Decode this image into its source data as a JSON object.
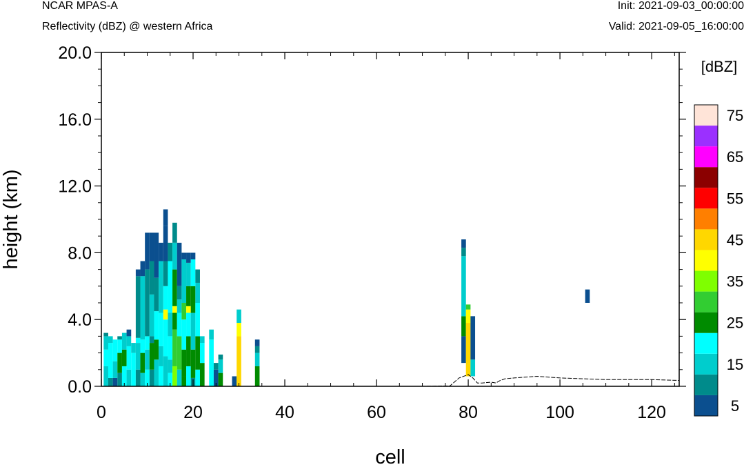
{
  "header": {
    "left_line1": "NCAR MPAS-A",
    "left_line2": "Reflectivity (dBZ) @ western Africa",
    "right_line1": "Init: 2021-09-03_00:00:00",
    "right_line2": "Valid: 2021-09-05_16:00:00"
  },
  "chart_data": {
    "type": "heatmap",
    "xlabel": "cell",
    "ylabel": "height (km)",
    "xlim": [
      0,
      126
    ],
    "ylim": [
      0,
      20
    ],
    "x_ticks": [
      0,
      20,
      40,
      60,
      80,
      100,
      120
    ],
    "x_tick_labels": [
      "0",
      "20",
      "40",
      "60",
      "80",
      "100",
      "120"
    ],
    "y_ticks": [
      0,
      4,
      8,
      12,
      16,
      20
    ],
    "y_tick_labels": [
      "0.0",
      "4.0",
      "8.0",
      "12.0",
      "16.0",
      "20.0"
    ],
    "grid": false,
    "colorbar": {
      "title": "[dBZ]",
      "levels": [
        5,
        10,
        15,
        20,
        25,
        30,
        35,
        40,
        45,
        50,
        55,
        60,
        65,
        70,
        75
      ],
      "colors": [
        "#0b4f8f",
        "#008b8b",
        "#00cdcd",
        "#00ffff",
        "#008b00",
        "#32cd32",
        "#7fff00",
        "#ffff00",
        "#ffd700",
        "#ff7f00",
        "#ff0000",
        "#8b0000",
        "#ff00ff",
        "#9b30ff",
        "#ffe4d8"
      ],
      "tick_labels": [
        "5",
        "15",
        "25",
        "35",
        "45",
        "55",
        "65",
        "75"
      ]
    },
    "columns": [
      {
        "x": 1,
        "cells": [
          [
            0,
            1.2,
            15
          ],
          [
            1.2,
            2.2,
            20
          ],
          [
            2.2,
            3.0,
            15
          ],
          [
            3.0,
            3.2,
            10
          ]
        ]
      },
      {
        "x": 2,
        "cells": [
          [
            0,
            0.5,
            10
          ],
          [
            0.5,
            2.6,
            20
          ],
          [
            2.6,
            3.0,
            15
          ]
        ]
      },
      {
        "x": 3,
        "cells": [
          [
            0,
            0.5,
            5
          ],
          [
            0.5,
            1.5,
            15
          ],
          [
            1.5,
            2.8,
            20
          ]
        ]
      },
      {
        "x": 4,
        "cells": [
          [
            0,
            0.8,
            10
          ],
          [
            0.8,
            2.0,
            25
          ],
          [
            2.0,
            2.8,
            20
          ],
          [
            2.8,
            3.0,
            10
          ]
        ]
      },
      {
        "x": 5,
        "cells": [
          [
            0,
            1.2,
            20
          ],
          [
            1.2,
            2.2,
            25
          ],
          [
            2.2,
            3.2,
            15
          ]
        ]
      },
      {
        "x": 6,
        "cells": [
          [
            0,
            1.0,
            15
          ],
          [
            1.0,
            2.4,
            20
          ],
          [
            2.4,
            3.0,
            15
          ],
          [
            3.0,
            3.4,
            5
          ]
        ]
      },
      {
        "x": 7,
        "cells": [
          [
            0,
            2.0,
            20
          ],
          [
            2.0,
            2.6,
            15
          ]
        ]
      },
      {
        "x": 8,
        "cells": [
          [
            0,
            1.0,
            10
          ],
          [
            1.0,
            2.6,
            15
          ],
          [
            2.6,
            2.9,
            20
          ],
          [
            2.9,
            6.6,
            10
          ],
          [
            6.6,
            7.0,
            5
          ]
        ]
      },
      {
        "x": 9,
        "cells": [
          [
            0,
            0.8,
            15
          ],
          [
            0.8,
            2.0,
            25
          ],
          [
            2.0,
            2.8,
            20
          ],
          [
            2.8,
            6.6,
            15
          ],
          [
            6.6,
            7.5,
            5
          ]
        ]
      },
      {
        "x": 10,
        "cells": [
          [
            0,
            1.0,
            20
          ],
          [
            1.0,
            2.2,
            15
          ],
          [
            2.2,
            3.0,
            20
          ],
          [
            3.0,
            7.0,
            10
          ],
          [
            7.0,
            9.2,
            5
          ]
        ]
      },
      {
        "x": 11,
        "cells": [
          [
            0,
            1.0,
            10
          ],
          [
            1.0,
            2.6,
            25
          ],
          [
            2.6,
            3.0,
            10
          ],
          [
            3.0,
            5.5,
            15
          ],
          [
            5.5,
            7.5,
            10
          ],
          [
            7.5,
            9.2,
            5
          ]
        ]
      },
      {
        "x": 12,
        "cells": [
          [
            0,
            1.6,
            15
          ],
          [
            1.6,
            2.8,
            25
          ],
          [
            2.8,
            4.5,
            20
          ],
          [
            4.5,
            6.5,
            10
          ],
          [
            6.5,
            9.2,
            5
          ]
        ]
      },
      {
        "x": 13,
        "cells": [
          [
            0,
            1.2,
            20
          ],
          [
            1.2,
            2.4,
            15
          ],
          [
            2.4,
            4.4,
            20
          ],
          [
            4.4,
            7.5,
            15
          ],
          [
            7.5,
            8.6,
            5
          ]
        ]
      },
      {
        "x": 14,
        "cells": [
          [
            0,
            1.8,
            15
          ],
          [
            1.8,
            4.0,
            20
          ],
          [
            4.0,
            4.6,
            40
          ],
          [
            4.6,
            6.0,
            20
          ],
          [
            6.0,
            7.5,
            10
          ],
          [
            7.5,
            9.6,
            5
          ],
          [
            9.6,
            10.6,
            5
          ]
        ]
      },
      {
        "x": 15,
        "cells": [
          [
            0,
            0.8,
            20
          ],
          [
            0.8,
            1.6,
            15
          ],
          [
            1.6,
            3.0,
            20
          ],
          [
            3.0,
            4.4,
            15
          ],
          [
            4.4,
            7.5,
            20
          ],
          [
            7.5,
            8.6,
            10
          ]
        ]
      },
      {
        "x": 16,
        "cells": [
          [
            0,
            1.2,
            35
          ],
          [
            1.2,
            3.4,
            30
          ],
          [
            3.4,
            4.4,
            25
          ],
          [
            4.4,
            4.8,
            40
          ],
          [
            4.8,
            7.0,
            25
          ],
          [
            7.0,
            8.6,
            15
          ],
          [
            8.6,
            9.8,
            10
          ]
        ]
      },
      {
        "x": 17,
        "cells": [
          [
            0,
            1.0,
            15
          ],
          [
            1.0,
            3.0,
            30
          ],
          [
            3.0,
            4.4,
            20
          ],
          [
            4.4,
            5.2,
            15
          ],
          [
            5.2,
            6.0,
            10
          ],
          [
            6.0,
            8.6,
            5
          ]
        ]
      },
      {
        "x": 18,
        "cells": [
          [
            0,
            0.6,
            25
          ],
          [
            0.6,
            2.2,
            25
          ],
          [
            2.2,
            4.0,
            20
          ],
          [
            4.0,
            5.0,
            30
          ],
          [
            5.0,
            7.6,
            15
          ],
          [
            7.6,
            8.0,
            5
          ]
        ]
      },
      {
        "x": 19,
        "cells": [
          [
            0,
            1.2,
            20
          ],
          [
            1.2,
            3.0,
            25
          ],
          [
            3.0,
            4.4,
            20
          ],
          [
            4.4,
            4.8,
            40
          ],
          [
            4.8,
            6.0,
            25
          ],
          [
            6.0,
            7.4,
            15
          ],
          [
            7.4,
            8.0,
            5
          ]
        ]
      },
      {
        "x": 20,
        "cells": [
          [
            0,
            0.5,
            10
          ],
          [
            0.5,
            2.2,
            25
          ],
          [
            2.2,
            4.4,
            15
          ],
          [
            4.4,
            6.0,
            25
          ],
          [
            6.0,
            7.6,
            20
          ],
          [
            7.6,
            8.0,
            5
          ]
        ]
      },
      {
        "x": 21,
        "cells": [
          [
            0,
            1.0,
            20
          ],
          [
            1.0,
            3.0,
            25
          ],
          [
            3.0,
            5.0,
            20
          ],
          [
            5.0,
            6.2,
            15
          ],
          [
            6.2,
            7.0,
            10
          ]
        ]
      },
      {
        "x": 22,
        "cells": [
          [
            0,
            1.4,
            25
          ],
          [
            1.4,
            2.6,
            20
          ],
          [
            2.6,
            3.0,
            15
          ]
        ]
      },
      {
        "x": 24,
        "cells": [
          [
            0,
            2.8,
            20
          ],
          [
            2.8,
            3.4,
            15
          ]
        ]
      },
      {
        "x": 25,
        "cells": [
          [
            0,
            1.0,
            5
          ],
          [
            1.0,
            1.4,
            10
          ]
        ]
      },
      {
        "x": 26,
        "cells": [
          [
            0,
            0.8,
            25
          ],
          [
            0.8,
            1.6,
            15
          ],
          [
            1.6,
            1.9,
            10
          ]
        ]
      },
      {
        "x": 29,
        "cells": [
          [
            0,
            0.6,
            5
          ]
        ]
      },
      {
        "x": 30,
        "cells": [
          [
            0,
            3.0,
            45
          ],
          [
            3.0,
            3.8,
            40
          ],
          [
            3.8,
            4.6,
            15
          ]
        ]
      },
      {
        "x": 34,
        "cells": [
          [
            0,
            1.2,
            25
          ],
          [
            1.2,
            2.0,
            15
          ],
          [
            2.0,
            2.4,
            10
          ],
          [
            2.4,
            2.8,
            5
          ]
        ]
      },
      {
        "x": 79,
        "cells": [
          [
            1.4,
            3.0,
            5
          ],
          [
            3.0,
            4.2,
            25
          ],
          [
            4.2,
            7.8,
            15
          ],
          [
            7.8,
            8.3,
            10
          ],
          [
            8.3,
            8.8,
            5
          ]
        ]
      },
      {
        "x": 80,
        "cells": [
          [
            0.6,
            3.8,
            45
          ],
          [
            3.8,
            4.6,
            40
          ],
          [
            4.6,
            4.9,
            30
          ]
        ]
      },
      {
        "x": 81,
        "cells": [
          [
            0.6,
            1.6,
            15
          ],
          [
            1.6,
            4.2,
            5
          ]
        ]
      },
      {
        "x": 106,
        "cells": [
          [
            5.0,
            5.8,
            5
          ]
        ]
      }
    ],
    "terrain": {
      "x": [
        0,
        10,
        20,
        30,
        40,
        50,
        60,
        70,
        76,
        78,
        80,
        81,
        82,
        83,
        85,
        86,
        87,
        88,
        90,
        95,
        100,
        105,
        110,
        115,
        120,
        126
      ],
      "y": [
        0,
        0,
        0,
        0,
        0,
        0,
        0,
        0,
        0.02,
        0.5,
        0.7,
        0.5,
        0.2,
        0.2,
        0.25,
        0.2,
        0.35,
        0.45,
        0.5,
        0.6,
        0.5,
        0.45,
        0.4,
        0.4,
        0.4,
        0.35
      ]
    }
  }
}
